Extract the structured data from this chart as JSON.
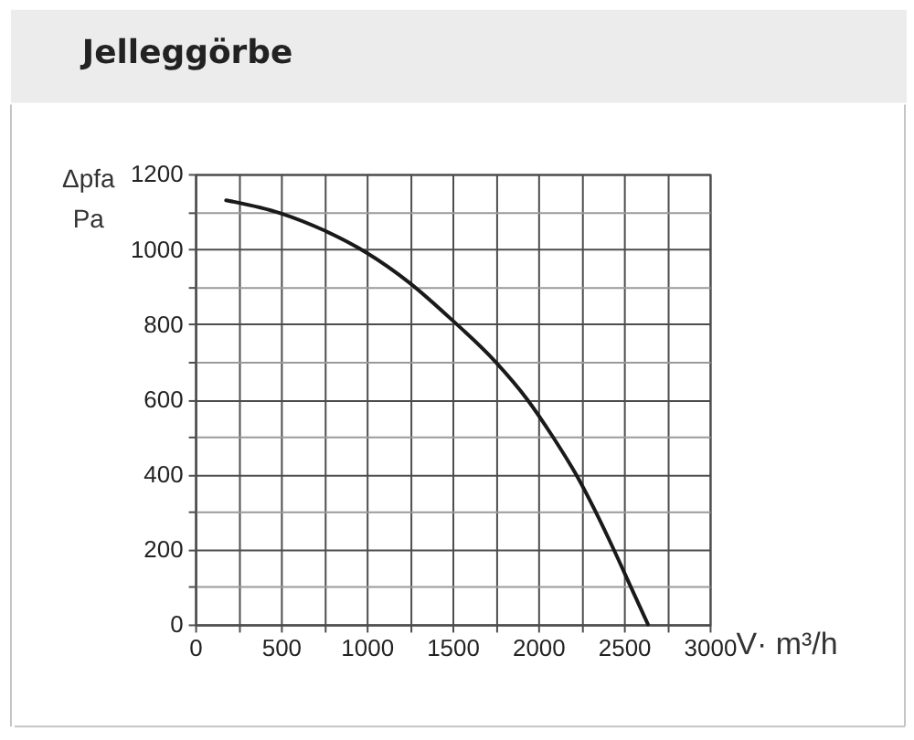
{
  "chart_data": {
    "type": "line",
    "title": "Jelleggörbe",
    "xlabel": "V· m³/h",
    "ylabel": "Δpfa\nPa",
    "x": [
      180,
      500,
      750,
      1000,
      1250,
      1500,
      1750,
      1935,
      2085,
      2220,
      2335,
      2440,
      2540,
      2640
    ],
    "values": [
      1130,
      1095,
      1050,
      990,
      910,
      810,
      700,
      600,
      500,
      400,
      300,
      200,
      100,
      0
    ],
    "color": "#1a1a1a",
    "xlim": [
      0,
      3000
    ],
    "ylim": [
      0,
      1200
    ],
    "xticks": [
      0,
      {
        "value": 250,
        "label": null
      },
      500,
      {
        "value": 750,
        "label": null
      },
      1000,
      {
        "value": 1250,
        "label": null
      },
      1500,
      {
        "value": 1750,
        "label": null
      },
      2000,
      {
        "value": 2250,
        "label": null
      },
      2500,
      {
        "value": 2750,
        "label": null
      },
      3000
    ],
    "yticks": [
      0,
      {
        "value": 100,
        "label": null
      },
      200,
      {
        "value": 300,
        "label": null
      },
      400,
      {
        "value": 500,
        "label": null
      },
      600,
      {
        "value": 700,
        "label": null
      },
      800,
      {
        "value": 900,
        "label": null
      },
      1000,
      {
        "value": 1100,
        "label": null
      },
      1200
    ],
    "grid": true
  }
}
